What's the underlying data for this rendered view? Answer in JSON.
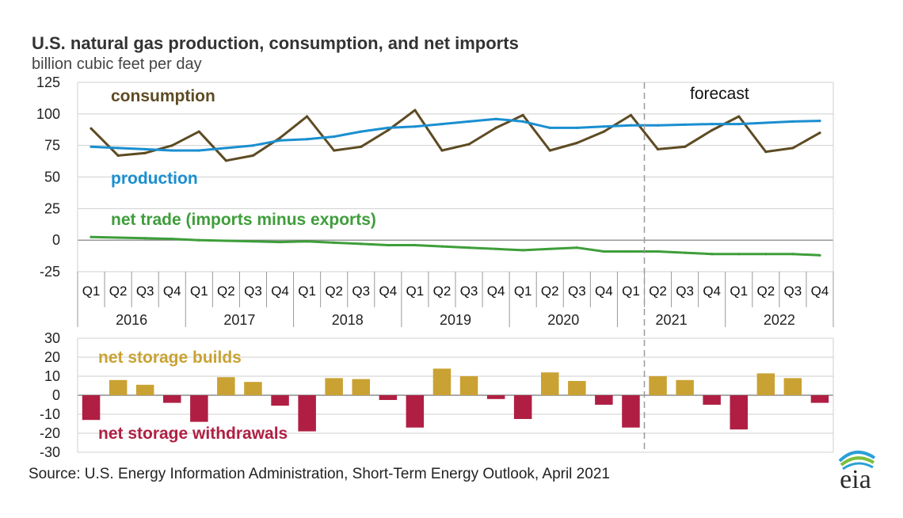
{
  "header": {
    "title": "U.S. natural gas production, consumption, and net imports",
    "subtitle": "billion cubic feet per day"
  },
  "source": "Source: U.S. Energy Information Administration, Short-Term Energy Outlook, April 2021",
  "logo_text": "eia",
  "chart_data": [
    {
      "type": "line",
      "x": [
        "2016 Q1",
        "2016 Q2",
        "2016 Q3",
        "2016 Q4",
        "2017 Q1",
        "2017 Q2",
        "2017 Q3",
        "2017 Q4",
        "2018 Q1",
        "2018 Q2",
        "2018 Q3",
        "2018 Q4",
        "2019 Q1",
        "2019 Q2",
        "2019 Q3",
        "2019 Q4",
        "2020 Q1",
        "2020 Q2",
        "2020 Q3",
        "2020 Q4",
        "2021 Q1",
        "2021 Q2",
        "2021 Q3",
        "2021 Q4",
        "2022 Q1",
        "2022 Q2",
        "2022 Q3",
        "2022 Q4"
      ],
      "quarter_labels": [
        "Q1",
        "Q2",
        "Q3",
        "Q4",
        "Q1",
        "Q2",
        "Q3",
        "Q4",
        "Q1",
        "Q2",
        "Q3",
        "Q4",
        "Q1",
        "Q2",
        "Q3",
        "Q4",
        "Q1",
        "Q2",
        "Q3",
        "Q4",
        "Q1",
        "Q2",
        "Q3",
        "Q4",
        "Q1",
        "Q2",
        "Q3",
        "Q4"
      ],
      "years": [
        "2016",
        "2017",
        "2018",
        "2019",
        "2020",
        "2021",
        "2022"
      ],
      "series": [
        {
          "name": "consumption",
          "color": "#5e4b23",
          "values": [
            88.5,
            67,
            69,
            75,
            86,
            63,
            67,
            81,
            98,
            71,
            74,
            87,
            103,
            71,
            76,
            89,
            99,
            71,
            77,
            86,
            99,
            72,
            74,
            87,
            98,
            70,
            73,
            85
          ]
        },
        {
          "name": "production",
          "color": "#1a8fd0",
          "values": [
            74,
            73,
            72,
            71,
            71,
            73,
            75,
            79,
            80,
            82,
            86,
            89,
            90,
            92,
            94,
            96,
            94,
            89,
            89,
            90,
            91,
            91,
            91.5,
            92,
            92,
            93,
            94,
            94.5
          ]
        },
        {
          "name": "net trade (imports minus exports)",
          "color": "#3e9e3a",
          "values": [
            2.5,
            2,
            1.5,
            1,
            0,
            -0.5,
            -1,
            -1.5,
            -1,
            -2,
            -3,
            -4,
            -4,
            -5,
            -6,
            -7,
            -8,
            -7,
            -6,
            -9,
            -9,
            -9,
            -10,
            -11,
            -11,
            -11,
            -11,
            -12
          ]
        }
      ],
      "ylim": [
        -25,
        125
      ],
      "yticks": [
        125,
        100,
        75,
        50,
        25,
        0,
        -25
      ],
      "forecast_label": "forecast",
      "forecast_start": "2021 Q1",
      "grid": true
    },
    {
      "type": "bar",
      "x": [
        "2016 Q1",
        "2016 Q2",
        "2016 Q3",
        "2016 Q4",
        "2017 Q1",
        "2017 Q2",
        "2017 Q3",
        "2017 Q4",
        "2018 Q1",
        "2018 Q2",
        "2018 Q3",
        "2018 Q4",
        "2019 Q1",
        "2019 Q2",
        "2019 Q3",
        "2019 Q4",
        "2020 Q1",
        "2020 Q2",
        "2020 Q3",
        "2020 Q4",
        "2021 Q1",
        "2021 Q2",
        "2021 Q3",
        "2021 Q4",
        "2022 Q1",
        "2022 Q2",
        "2022 Q3",
        "2022 Q4"
      ],
      "values": [
        -13,
        8,
        5.5,
        -4,
        -14,
        9.5,
        7,
        -5.5,
        -19,
        9,
        8.5,
        -2.5,
        -17,
        14,
        10,
        -2,
        -12.5,
        12,
        7.5,
        -5,
        -17,
        10,
        8,
        -5,
        -18,
        11.5,
        9,
        -4
      ],
      "positive_label": "net storage builds",
      "negative_label": "net storage withdrawals",
      "positive_color": "#c9a233",
      "negative_color": "#b01f43",
      "ylim": [
        -30,
        30
      ],
      "yticks": [
        30,
        20,
        10,
        0,
        -10,
        -20,
        -30
      ],
      "grid": true
    }
  ]
}
